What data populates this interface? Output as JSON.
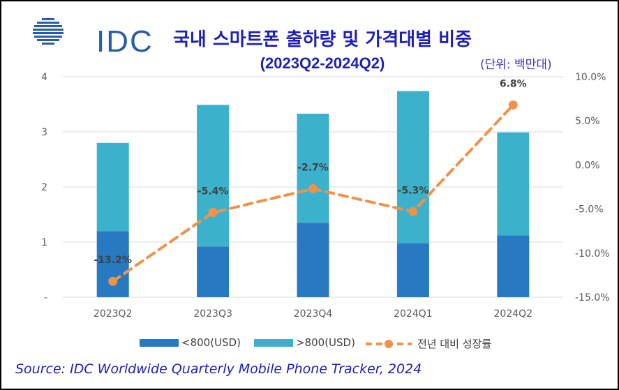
{
  "header": {
    "logo_text": "IDC",
    "title": "국내 스마트폰 출하량 및 가격대별 비중",
    "subtitle": "(2023Q2-2024Q2)",
    "unit": "(단위: 백만대)"
  },
  "footer": {
    "source": "Source: IDC Worldwide Quarterly Mobile Phone Tracker, 2024"
  },
  "colors": {
    "under_800": "#2779c2",
    "over_800": "#3bb1cc",
    "growth_line": "#f0924a",
    "gridline": "#d9d9d9",
    "axis_text": "#595959"
  },
  "chart_data": {
    "type": "bar",
    "stacked": true,
    "categories": [
      "2023Q2",
      "2023Q3",
      "2023Q4",
      "2024Q1",
      "2024Q2"
    ],
    "series": [
      {
        "name": "<800(USD)",
        "values": [
          1.2,
          0.92,
          1.35,
          0.98,
          1.12
        ],
        "axis": "left"
      },
      {
        "name": ">800(USD)",
        "values": [
          1.6,
          2.57,
          1.98,
          2.76,
          1.87
        ],
        "axis": "left"
      },
      {
        "name": "전년 대비 성장률",
        "type": "line",
        "axis": "right",
        "values": [
          -13.2,
          -5.4,
          -2.7,
          -5.3,
          6.8
        ],
        "labels": [
          "-13.2%",
          "-5.4%",
          "-2.7%",
          "-5.3%",
          "6.8%"
        ]
      }
    ],
    "y_left": {
      "ylim": [
        0,
        4
      ],
      "ticks": [
        "-",
        "1",
        "2",
        "3",
        "4"
      ]
    },
    "y_right": {
      "ylim": [
        -15,
        10
      ],
      "ticks": [
        "-15.0%",
        "-10.0%",
        "-5.0%",
        "0.0%",
        "5.0%",
        "10.0%"
      ]
    },
    "grid": true,
    "legend_position": "bottom"
  }
}
